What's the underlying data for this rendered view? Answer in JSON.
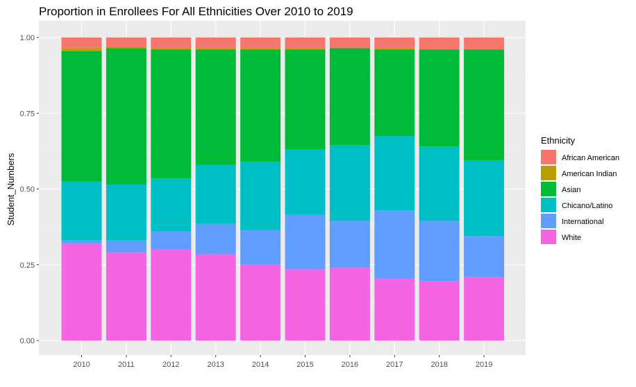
{
  "chart_data": {
    "type": "bar",
    "stacked": true,
    "title": "Proportion in Enrollees For All Ethnicities Over 2010 to 2019",
    "xlabel": "",
    "ylabel": "Student_Numbers",
    "ylim": [
      0,
      1
    ],
    "yticks": [
      "0.00",
      "0.25",
      "0.50",
      "0.75",
      "1.00"
    ],
    "grid": true,
    "legend": {
      "title": "Ethnicity",
      "position": "right"
    },
    "categories": [
      "2010",
      "2011",
      "2012",
      "2013",
      "2014",
      "2015",
      "2016",
      "2017",
      "2018",
      "2019"
    ],
    "series": [
      {
        "name": "White",
        "color": "#F564E3",
        "values": [
          0.32,
          0.29,
          0.3,
          0.285,
          0.25,
          0.235,
          0.24,
          0.205,
          0.195,
          0.21
        ]
      },
      {
        "name": "International",
        "color": "#619CFF",
        "values": [
          0.01,
          0.04,
          0.06,
          0.1,
          0.115,
          0.18,
          0.155,
          0.225,
          0.2,
          0.135
        ]
      },
      {
        "name": "Chicano/Latino",
        "color": "#00BFC4",
        "values": [
          0.195,
          0.185,
          0.175,
          0.195,
          0.225,
          0.215,
          0.25,
          0.245,
          0.245,
          0.25
        ]
      },
      {
        "name": "Asian",
        "color": "#00BA38",
        "values": [
          0.43,
          0.45,
          0.425,
          0.38,
          0.37,
          0.33,
          0.32,
          0.285,
          0.32,
          0.365
        ]
      },
      {
        "name": "American Indian",
        "color": "#B79F00",
        "values": [
          0.01,
          0.005,
          0.005,
          0.005,
          0.005,
          0.005,
          0.0,
          0.005,
          0.0,
          0.0
        ]
      },
      {
        "name": "African American",
        "color": "#F8766D",
        "values": [
          0.035,
          0.03,
          0.035,
          0.035,
          0.035,
          0.035,
          0.035,
          0.035,
          0.04,
          0.04
        ]
      }
    ],
    "legend_order": [
      "African American",
      "American Indian",
      "Asian",
      "Chicano/Latino",
      "International",
      "White"
    ]
  }
}
